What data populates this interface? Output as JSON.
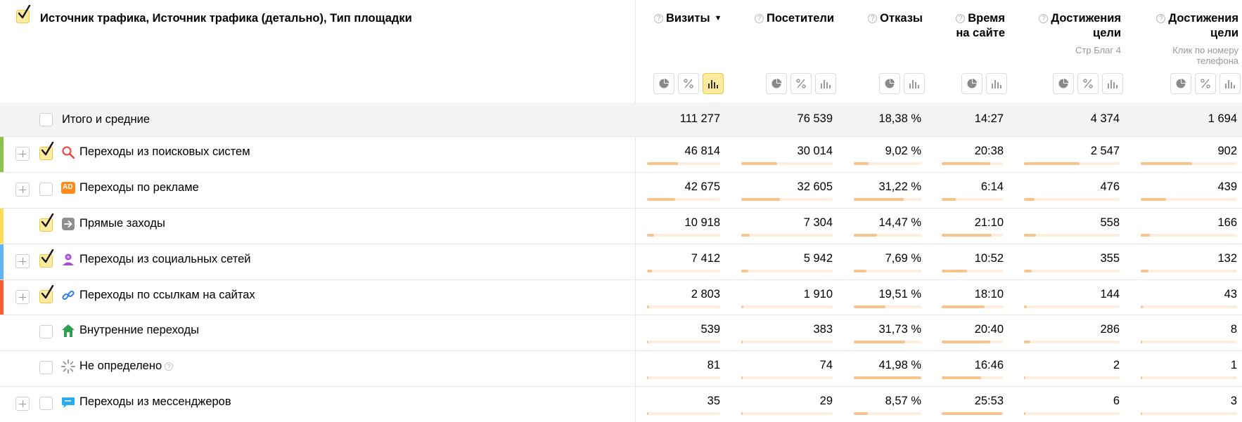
{
  "header": {
    "title": "Источник трафика, Источник трафика (детально), Тип площадки",
    "metrics": [
      {
        "name": "Визиты",
        "sorted": true,
        "sort_glyph": "▼",
        "sub": "",
        "buttons": [
          "pie",
          "percent",
          "bars"
        ],
        "active": "bars"
      },
      {
        "name": "Посетители",
        "sorted": false,
        "sub": "",
        "buttons": [
          "pie",
          "percent",
          "bars"
        ],
        "active": ""
      },
      {
        "name": "Отказы",
        "sorted": false,
        "sub": "",
        "buttons": [
          "pie",
          "bars"
        ],
        "active": ""
      },
      {
        "name": "Время на сайте",
        "sorted": false,
        "sub": "",
        "buttons": [
          "pie",
          "bars"
        ],
        "active": ""
      },
      {
        "name": "Достижения цели",
        "sorted": false,
        "sub": "Стр Благ 4",
        "buttons": [
          "pie",
          "percent",
          "bars"
        ],
        "active": ""
      },
      {
        "name": "Достижения цели",
        "sorted": false,
        "sub": "Клик по номеру телефона",
        "buttons": [
          "pie",
          "percent",
          "bars"
        ],
        "active": ""
      }
    ]
  },
  "total": {
    "label": "Итого и средние",
    "values": [
      "111 277",
      "76 539",
      "18,38 %",
      "14:27",
      "4 374",
      "1 694"
    ]
  },
  "rows": [
    {
      "label": "Переходы из поисковых систем",
      "icon": "search-icon",
      "expandable": true,
      "checked": true,
      "stripe": "#8bc34a",
      "values": [
        "46 814",
        "30 014",
        "9,02 %",
        "20:38",
        "2 547",
        "902"
      ],
      "fill": [
        0.4207,
        0.3921,
        0.2149,
        0.781,
        0.5823,
        0.5325
      ]
    },
    {
      "label": "Переходы по рекламе",
      "icon": "ad-icon",
      "icon_text": "AD",
      "expandable": true,
      "checked": false,
      "stripe": "",
      "values": [
        "42 675",
        "32 605",
        "31,22 %",
        "6:14",
        "476",
        "439"
      ],
      "fill": [
        0.3835,
        0.426,
        0.7437,
        0.2309,
        0.1088,
        0.2592
      ]
    },
    {
      "label": "Прямые заходы",
      "icon": "arrow-icon",
      "expandable": false,
      "checked": true,
      "stripe": "#ffdd57",
      "values": [
        "10 918",
        "7 304",
        "14,47 %",
        "21:10",
        "558",
        "166"
      ],
      "fill": [
        0.0981,
        0.0954,
        0.3447,
        0.8012,
        0.1276,
        0.098
      ]
    },
    {
      "label": "Переходы из социальных сетей",
      "icon": "social-icon",
      "expandable": true,
      "checked": true,
      "stripe": "#64b5f6",
      "values": [
        "7 412",
        "5 942",
        "7,69 %",
        "10:52",
        "355",
        "132"
      ],
      "fill": [
        0.0666,
        0.0776,
        0.1832,
        0.4115,
        0.0812,
        0.0779
      ]
    },
    {
      "label": "Переходы по ссылкам на сайтах",
      "icon": "link-icon",
      "expandable": true,
      "checked": true,
      "stripe": "#ff5a36",
      "values": [
        "2 803",
        "1 910",
        "19,51 %",
        "18:10",
        "144",
        "43"
      ],
      "fill": [
        0.0252,
        0.025,
        0.4648,
        0.6877,
        0.0329,
        0.0254
      ]
    },
    {
      "label": "Внутренние переходы",
      "icon": "home-icon",
      "expandable": false,
      "checked": false,
      "stripe": "",
      "values": [
        "539",
        "383",
        "31,73 %",
        "20:40",
        "286",
        "8"
      ],
      "fill": [
        0.0048,
        0.005,
        0.7559,
        0.7823,
        0.0654,
        0.0047
      ]
    },
    {
      "label": "Не определено",
      "icon": "loader-icon",
      "expandable": false,
      "checked": false,
      "stripe": "",
      "hint": "?",
      "values": [
        "81",
        "74",
        "41,98 %",
        "16:46",
        "2",
        "1"
      ],
      "fill": [
        0.0007,
        0.001,
        1.0,
        0.6347,
        0.0005,
        0.0006
      ]
    },
    {
      "label": "Переходы из мессенджеров",
      "icon": "chat-icon",
      "expandable": true,
      "checked": false,
      "stripe": "",
      "values": [
        "35",
        "29",
        "8,57 %",
        "25:53",
        "6",
        "3"
      ],
      "fill": [
        0.0003,
        0.0004,
        0.2041,
        0.9798,
        0.0014,
        0.0018
      ]
    }
  ],
  "colors": {
    "accent": "#ffeba0",
    "bar": "#f7c58c",
    "bar_bg": "#fdeedd",
    "total_bg": "#f5f4f2"
  }
}
